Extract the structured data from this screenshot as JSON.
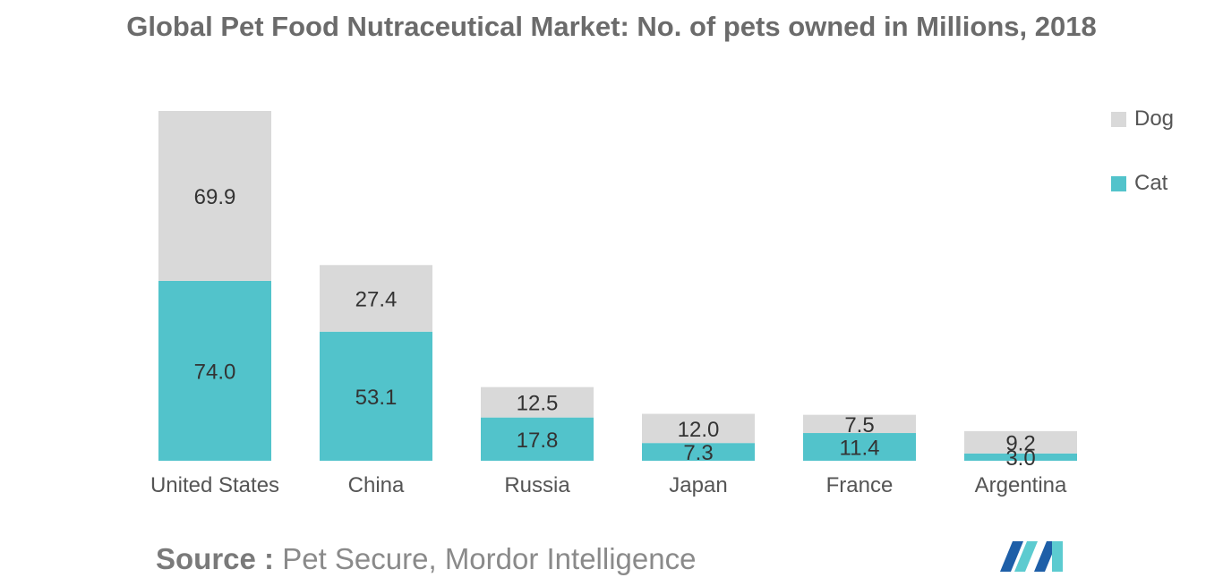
{
  "chart_data": {
    "type": "bar",
    "stacked": true,
    "title": "Global Pet Food Nutraceutical Market: No. of pets owned in Millions, 2018",
    "xlabel": "",
    "ylabel": "",
    "categories": [
      "United States",
      "China",
      "Russia",
      "Japan",
      "France",
      "Argentina"
    ],
    "series": [
      {
        "name": "Cat",
        "values": [
          74.0,
          53.1,
          17.8,
          7.3,
          11.4,
          3.0
        ],
        "labels": [
          "74.0",
          "53.1",
          "17.8",
          "7.3",
          "11.4",
          "3.0"
        ]
      },
      {
        "name": "Dog",
        "values": [
          69.9,
          27.4,
          12.5,
          12.0,
          7.5,
          9.2
        ],
        "labels": [
          "69.9",
          "27.4",
          "12.5",
          "12.0",
          "7.5",
          "9.2"
        ]
      }
    ],
    "ylim": [
      0,
      143.9
    ],
    "grid": false,
    "legend_position": "top-right"
  },
  "legend": {
    "items": [
      {
        "name": "Dog",
        "color": "#d9d9d9"
      },
      {
        "name": "Cat",
        "color": "#52c3cb"
      }
    ]
  },
  "colors": {
    "cat": "#52c3cb",
    "dog": "#d9d9d9",
    "logo_dark": "#1e5fa8",
    "logo_light": "#5ccbd0"
  },
  "source": {
    "label": "Source :",
    "text": "Pet Secure, Mordor Intelligence"
  },
  "logo": {
    "icon": "mordor-intelligence-logo-icon"
  }
}
